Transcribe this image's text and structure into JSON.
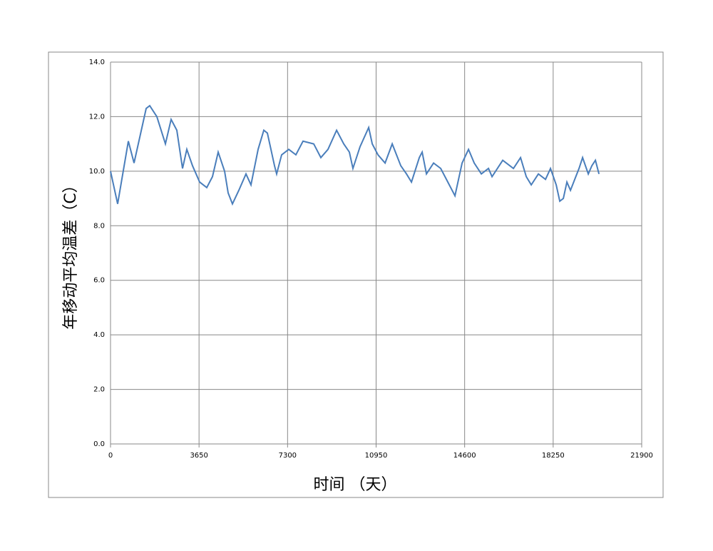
{
  "chart_data": {
    "type": "line",
    "y_label": "年移动平均温差（C）",
    "x_label": "时间 （天）",
    "xlim": [
      0,
      21900
    ],
    "xticks": [
      0,
      3650,
      7300,
      10950,
      14600,
      18250,
      21900
    ],
    "ylim": [
      0,
      14
    ],
    "yticks": [
      {
        "value": 0,
        "label": "0.0"
      },
      {
        "value": 2,
        "label": "2.0"
      },
      {
        "value": 4,
        "label": "4.0"
      },
      {
        "value": 6,
        "label": "6.0"
      },
      {
        "value": 8,
        "label": "8.0"
      },
      {
        "value": 10,
        "label": "10.0"
      },
      {
        "value": 12,
        "label": "12.0"
      },
      {
        "value": 14,
        "label": "14.0"
      }
    ],
    "grid": true,
    "x": [
      0,
      294,
      735,
      970,
      1470,
      1617,
      1911,
      2264,
      2499,
      2734,
      2969,
      3146,
      3381,
      3675,
      3969,
      4204,
      4439,
      4704,
      4851,
      5027,
      5292,
      5586,
      5792,
      6086,
      6321,
      6468,
      6762,
      6850,
      7056,
      7350,
      7644,
      7938,
      8379,
      8673,
      8967,
      9320,
      9614,
      9849,
      9996,
      10290,
      10643,
      10790,
      11025,
      11319,
      11613,
      11966,
      12201,
      12407,
      12730,
      12848,
      13024,
      13318,
      13612,
      13906,
      14200,
      14494,
      14759,
      14994,
      15288,
      15582,
      15729,
      16170,
      16611,
      16905,
      17140,
      17346,
      17640,
      17934,
      18140,
      18375,
      18522,
      18669,
      18816,
      18963,
      19139,
      19316,
      19463,
      19698,
      19845,
      19992,
      20139
    ],
    "series": [
      {
        "color": "#4a7ebb",
        "values": [
          10.0,
          8.8,
          11.1,
          10.3,
          12.3,
          12.4,
          12.0,
          11.0,
          11.9,
          11.5,
          10.1,
          10.8,
          10.2,
          9.6,
          9.4,
          9.8,
          10.7,
          10.0,
          9.2,
          8.8,
          9.3,
          9.9,
          9.5,
          10.8,
          11.5,
          11.4,
          10.2,
          9.9,
          10.6,
          10.8,
          10.6,
          11.1,
          11.0,
          10.5,
          10.8,
          11.5,
          11.0,
          10.7,
          10.1,
          10.9,
          11.6,
          11.0,
          10.6,
          10.3,
          11.0,
          10.2,
          9.9,
          9.6,
          10.5,
          10.7,
          9.9,
          10.3,
          10.1,
          9.6,
          9.1,
          10.3,
          10.8,
          10.3,
          9.9,
          10.1,
          9.8,
          10.4,
          10.1,
          10.5,
          9.8,
          9.5,
          9.9,
          9.7,
          10.1,
          9.5,
          8.9,
          9.0,
          9.6,
          9.3,
          9.7,
          10.1,
          10.5,
          9.9,
          10.2,
          10.4,
          9.9
        ]
      }
    ]
  }
}
